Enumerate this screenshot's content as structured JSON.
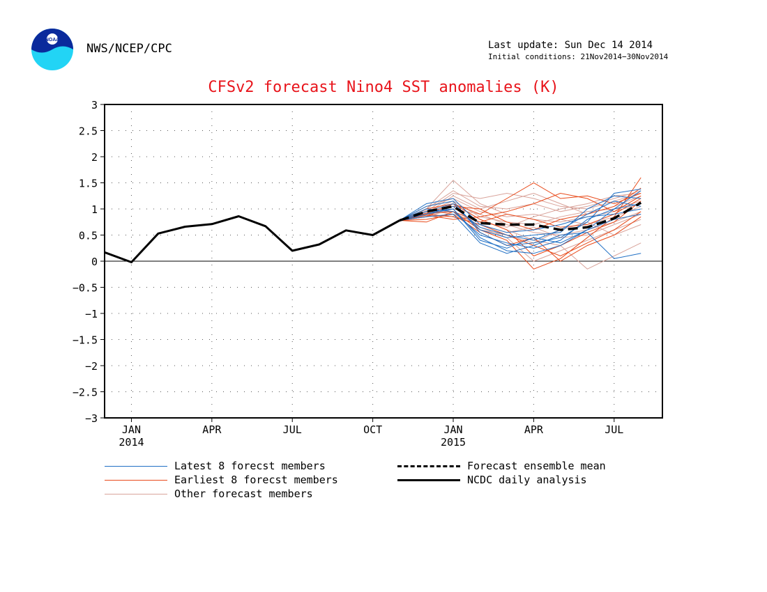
{
  "header": {
    "agency": "NWS/NCEP/CPC",
    "last_update": "Last update: Sun Dec 14 2014",
    "initial_conditions": "Initial conditions: 21Nov2014−30Nov2014",
    "logo_text": "NOAA"
  },
  "colors": {
    "title": "#e8141b",
    "latest_members": "#1f6fc4",
    "earliest_members": "#e84a1a",
    "other_members": "#d9a39a",
    "ensemble_mean": "#000000",
    "analysis": "#000000"
  },
  "chart_data": {
    "type": "line",
    "title": "CFSv2 forecast Nino4 SST anomalies (K)",
    "xlabel": "",
    "ylabel": "",
    "ylim": [
      -3,
      3
    ],
    "yticks": [
      "3",
      "2.5",
      "2",
      "1.5",
      "1",
      "0.5",
      "0",
      "−0.5",
      "−1",
      "−1.5",
      "−2",
      "−2.5",
      "−3"
    ],
    "xlim": [
      -1,
      19.8
    ],
    "x_tick_labels": [
      {
        "x": 0,
        "month": "JAN",
        "year": "2014"
      },
      {
        "x": 3,
        "month": "APR",
        "year": ""
      },
      {
        "x": 6,
        "month": "JUL",
        "year": ""
      },
      {
        "x": 9,
        "month": "OCT",
        "year": ""
      },
      {
        "x": 12,
        "month": "JAN",
        "year": "2015"
      },
      {
        "x": 15,
        "month": "APR",
        "year": ""
      },
      {
        "x": 18,
        "month": "JUL",
        "year": ""
      }
    ],
    "grid": true,
    "legend_position": "bottom",
    "series": [
      {
        "name": "NCDC daily analysis",
        "style": "solid",
        "x": [
          -1,
          0,
          1,
          2,
          3,
          4,
          5,
          6,
          7,
          8,
          9,
          10
        ],
        "values": [
          0.17,
          -0.02,
          0.53,
          0.66,
          0.71,
          0.86,
          0.67,
          0.2,
          0.32,
          0.59,
          0.5,
          0.78
        ]
      },
      {
        "name": "Forecast ensemble mean",
        "style": "dashed",
        "x": [
          10,
          11,
          12,
          13,
          14,
          15,
          16,
          17,
          18,
          19
        ],
        "values": [
          0.78,
          0.95,
          1.05,
          0.73,
          0.7,
          0.7,
          0.6,
          0.65,
          0.82,
          1.12
        ]
      },
      {
        "name": "Latest 8 forecst members",
        "style": "thin",
        "members": [
          [
            0.78,
            0.9,
            1.0,
            0.45,
            0.2,
            0.15,
            0.3,
            0.6,
            1.0,
            1.35
          ],
          [
            0.78,
            1.05,
            1.15,
            0.55,
            0.3,
            0.35,
            0.45,
            0.75,
            1.3,
            1.38
          ],
          [
            0.78,
            0.85,
            0.9,
            0.35,
            0.15,
            0.3,
            0.5,
            0.55,
            0.05,
            0.15
          ],
          [
            0.78,
            0.95,
            1.1,
            0.6,
            0.45,
            0.5,
            0.55,
            1.0,
            1.25,
            1.2
          ],
          [
            0.78,
            1.0,
            0.95,
            0.5,
            0.35,
            0.25,
            0.4,
            0.8,
            1.0,
            1.1
          ],
          [
            0.78,
            0.9,
            1.05,
            0.65,
            0.5,
            0.4,
            0.6,
            0.9,
            1.15,
            1.05
          ],
          [
            0.78,
            1.1,
            1.2,
            0.7,
            0.55,
            0.6,
            0.7,
            0.85,
            0.9,
            1.0
          ],
          [
            0.78,
            0.95,
            1.0,
            0.4,
            0.25,
            0.45,
            0.35,
            0.6,
            0.8,
            0.9
          ]
        ]
      },
      {
        "name": "Earliest 8 forecst members",
        "style": "thin",
        "members": [
          [
            0.78,
            0.75,
            0.95,
            0.6,
            0.4,
            -0.15,
            0.05,
            0.45,
            0.85,
            1.6
          ],
          [
            0.78,
            0.85,
            1.1,
            0.9,
            1.2,
            1.5,
            1.2,
            1.25,
            1.1,
            1.3
          ],
          [
            0.78,
            0.9,
            0.85,
            0.7,
            0.5,
            0.3,
            0.1,
            0.35,
            0.6,
            0.95
          ],
          [
            0.78,
            0.95,
            1.05,
            1.0,
            0.75,
            0.6,
            0.8,
            0.9,
            1.05,
            1.4
          ],
          [
            0.78,
            0.8,
            0.9,
            0.55,
            0.3,
            0.45,
            0.0,
            0.3,
            0.5,
            0.85
          ],
          [
            0.78,
            0.88,
            0.8,
            0.85,
            0.95,
            1.1,
            1.3,
            1.2,
            0.95,
            1.25
          ],
          [
            0.78,
            1.0,
            1.1,
            0.8,
            0.6,
            0.1,
            0.3,
            0.55,
            0.75,
            1.15
          ],
          [
            0.78,
            0.92,
            0.95,
            0.75,
            0.9,
            0.8,
            0.65,
            0.7,
            0.9,
            1.2
          ]
        ]
      },
      {
        "name": "Other forecast members",
        "style": "thin",
        "members": [
          [
            0.78,
            1.0,
            1.55,
            1.1,
            0.9,
            0.8,
            0.75,
            0.85,
            0.95,
            1.1
          ],
          [
            0.78,
            0.95,
            1.3,
            1.2,
            1.3,
            1.2,
            1.05,
            1.0,
            1.15,
            1.3
          ],
          [
            0.78,
            0.9,
            1.1,
            0.8,
            0.6,
            0.4,
            0.3,
            -0.15,
            0.1,
            0.35
          ],
          [
            0.78,
            0.85,
            1.0,
            0.9,
            0.7,
            0.55,
            0.5,
            0.6,
            0.75,
            0.95
          ],
          [
            0.78,
            1.05,
            1.2,
            0.95,
            0.85,
            0.9,
            0.8,
            0.7,
            0.85,
            1.05
          ],
          [
            0.78,
            0.9,
            0.95,
            0.65,
            0.45,
            0.0,
            0.2,
            0.4,
            0.6,
            0.8
          ],
          [
            0.78,
            1.0,
            1.35,
            1.05,
            1.0,
            1.1,
            0.95,
            1.05,
            1.2,
            1.35
          ],
          [
            0.78,
            0.88,
            0.85,
            0.7,
            0.55,
            0.65,
            0.45,
            0.5,
            0.7,
            0.9
          ],
          [
            0.78,
            0.95,
            1.15,
            0.85,
            0.75,
            0.7,
            0.85,
            0.95,
            1.0,
            1.15
          ],
          [
            0.78,
            0.92,
            1.25,
            1.0,
            1.15,
            1.3,
            1.1,
            0.9,
            1.05,
            1.25
          ],
          [
            0.78,
            0.86,
            1.05,
            0.6,
            0.5,
            0.35,
            0.6,
            0.75,
            0.5,
            0.7
          ],
          [
            0.78,
            0.97,
            0.9,
            0.75,
            0.65,
            0.85,
            1.0,
            1.1,
            1.25,
            1.3
          ]
        ]
      }
    ]
  }
}
